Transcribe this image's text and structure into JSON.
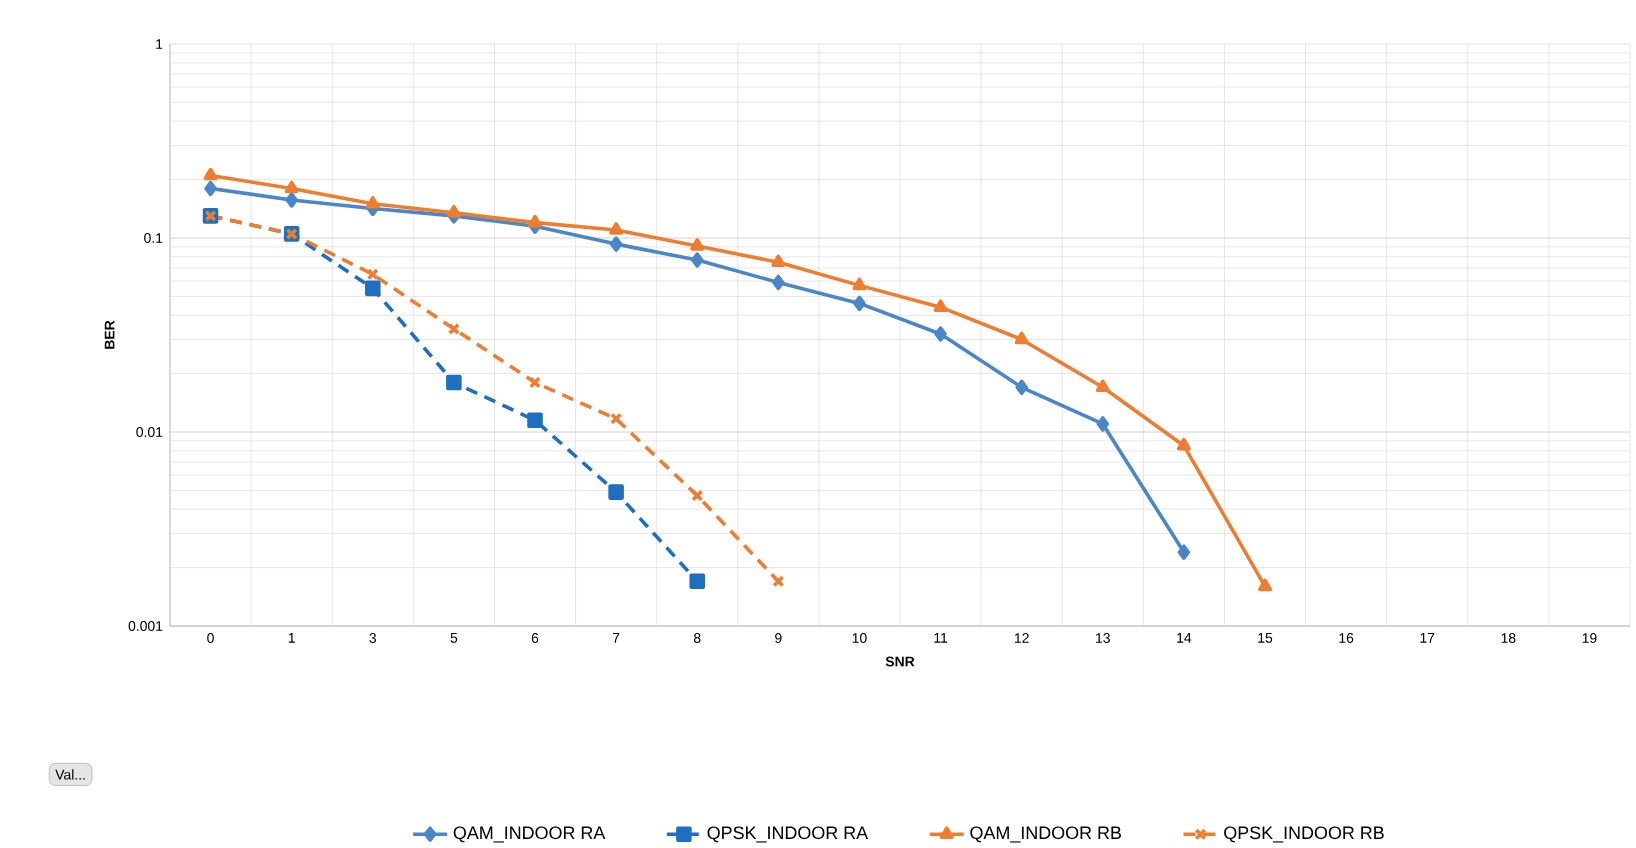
{
  "chart_data": {
    "type": "line",
    "xlabel": "SNR",
    "ylabel": "BER",
    "categories": [
      "0",
      "1",
      "3",
      "5",
      "6",
      "7",
      "8",
      "9",
      "10",
      "11",
      "12",
      "13",
      "14",
      "15",
      "16",
      "17",
      "18",
      "19"
    ],
    "series": [
      {
        "name": "QAM_INDOOR RA",
        "color": "#4a86c8",
        "marker": "diamond",
        "line_style": "solid",
        "values": [
          0.18,
          0.157,
          0.142,
          0.13,
          0.115,
          0.093,
          0.077,
          0.059,
          0.046,
          0.032,
          0.017,
          0.011,
          0.0024,
          null,
          null,
          null,
          null,
          null
        ]
      },
      {
        "name": "QPSK_INDOOR RA",
        "color": "#1f6fc0",
        "marker": "square",
        "line_style": "dashed",
        "values": [
          0.13,
          0.105,
          0.055,
          0.018,
          0.0115,
          0.0049,
          0.0017,
          null,
          null,
          null,
          null,
          null,
          null,
          null,
          null,
          null,
          null,
          null
        ]
      },
      {
        "name": "QAM_INDOOR RB",
        "color": "#ed7d31",
        "marker": "triangle",
        "line_style": "solid",
        "values": [
          0.21,
          0.18,
          0.15,
          0.135,
          0.12,
          0.11,
          0.091,
          0.075,
          0.057,
          0.044,
          0.03,
          0.017,
          0.0085,
          0.0016,
          null,
          null,
          null,
          null
        ]
      },
      {
        "name": "QPSK_INDOOR RB",
        "color": "#ed7d31",
        "marker": "cross",
        "line_style": "dashed",
        "values": [
          0.13,
          0.105,
          0.065,
          0.034,
          0.018,
          0.0117,
          0.0047,
          0.0017,
          null,
          null,
          null,
          null,
          null,
          null,
          null,
          null,
          null,
          null
        ]
      }
    ],
    "log": "y",
    "ylim": [
      0.001,
      1
    ],
    "yticks": [
      0.001,
      0.01,
      0.1,
      1
    ],
    "grid": true,
    "legend": "bottom",
    "annotations": [
      "Val..."
    ]
  }
}
